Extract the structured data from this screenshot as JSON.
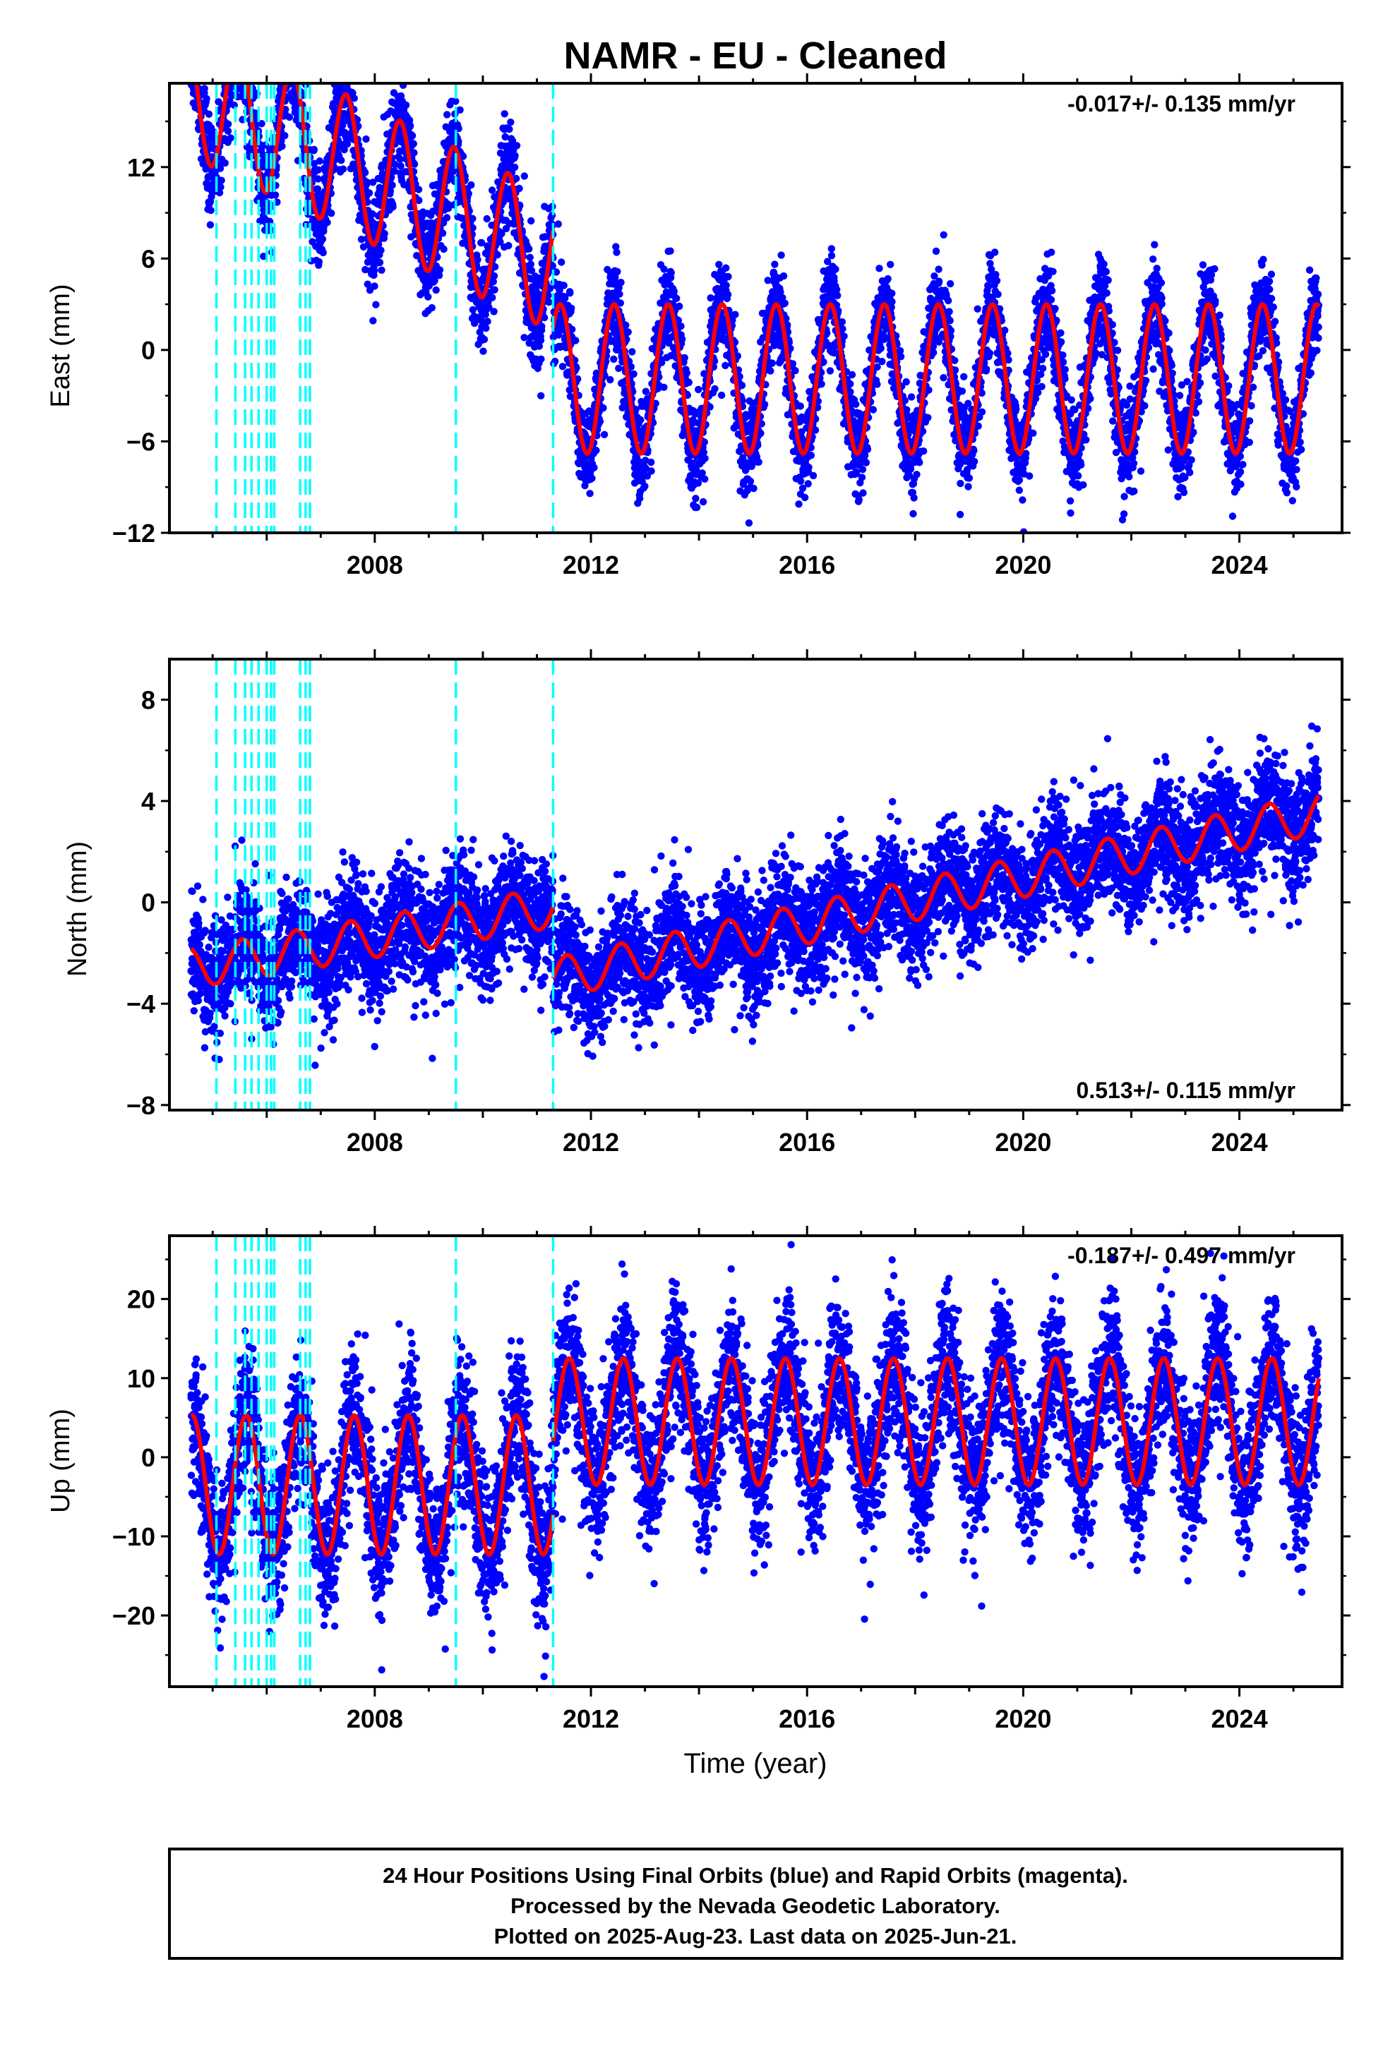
{
  "title": "NAMR  - EU - Cleaned",
  "colors": {
    "points": "#0000ff",
    "model": "#ff0000",
    "events": "#00ffff",
    "frame": "#000000"
  },
  "chart_data": [
    {
      "type": "scatter",
      "component": "east",
      "ylabel": "East (mm)",
      "rate_label": "-0.017+/- 0.135 mm/yr",
      "rate_position": "top-right",
      "xlim": [
        2004.2,
        2025.9
      ],
      "ylim": [
        -12,
        17.5
      ],
      "yticks": [
        -12,
        -6,
        0,
        6,
        12
      ],
      "ytick_labels": [
        "−12",
        "−6",
        "0",
        "6",
        "12"
      ],
      "xticks": [
        2008,
        2012,
        2016,
        2020,
        2024
      ],
      "xtick_labels": [
        "2008",
        "2012",
        "2016",
        "2020",
        "2024"
      ],
      "model_segments": [
        {
          "t0": 2004.6,
          "t1": 2011.3,
          "offset": 17.2,
          "trend": -1.72,
          "amplitude": 4.5,
          "peak_phase": 0.47,
          "noise": 1.7
        },
        {
          "t0": 2011.3,
          "t1": 2025.47,
          "offset": -1.9,
          "trend": 0.0,
          "amplitude": 4.9,
          "peak_phase": 0.43,
          "noise": 1.5
        }
      ],
      "series": [
        {
          "name": "Final Orbits",
          "kind": "points"
        },
        {
          "name": "model",
          "kind": "line"
        }
      ]
    },
    {
      "type": "scatter",
      "component": "north",
      "ylabel": "North (mm)",
      "rate_label": "0.513+/- 0.115 mm/yr",
      "rate_position": "bottom-right",
      "xlim": [
        2004.2,
        2025.9
      ],
      "ylim": [
        -8.2,
        9.6
      ],
      "yticks": [
        -8,
        -4,
        0,
        4,
        8
      ],
      "ytick_labels": [
        "−8",
        "−4",
        "0",
        "4",
        "8"
      ],
      "xticks": [
        2008,
        2012,
        2016,
        2020,
        2024
      ],
      "xtick_labels": [
        "2008",
        "2012",
        "2016",
        "2020",
        "2024"
      ],
      "model_segments": [
        {
          "t0": 2004.6,
          "t1": 2011.3,
          "offset": -2.6,
          "trend": 0.36,
          "amplitude": 0.8,
          "peak_phase": 0.55,
          "noise": 1.1
        },
        {
          "t0": 2011.3,
          "t1": 2025.47,
          "offset": -3.0,
          "trend": 0.46,
          "amplitude": 0.8,
          "peak_phase": 0.55,
          "noise": 1.1
        }
      ],
      "series": [
        {
          "name": "Final Orbits",
          "kind": "points"
        },
        {
          "name": "model",
          "kind": "line"
        }
      ]
    },
    {
      "type": "scatter",
      "component": "up",
      "ylabel": "Up (mm)",
      "xlabel": "Time (year)",
      "rate_label": "-0.187+/- 0.497 mm/yr",
      "rate_position": "top-right",
      "xlim": [
        2004.2,
        2025.9
      ],
      "ylim": [
        -29,
        28
      ],
      "yticks": [
        -20,
        -10,
        0,
        10,
        20
      ],
      "ytick_labels": [
        "−20",
        "−10",
        "0",
        "10",
        "20"
      ],
      "xticks": [
        2008,
        2012,
        2016,
        2020,
        2024
      ],
      "xtick_labels": [
        "2008",
        "2012",
        "2016",
        "2020",
        "2024"
      ],
      "model_segments": [
        {
          "t0": 2004.6,
          "t1": 2011.3,
          "offset": -3.5,
          "trend": 0.0,
          "amplitude": 8.8,
          "peak_phase": 0.62,
          "noise": 4.5
        },
        {
          "t0": 2011.3,
          "t1": 2025.47,
          "offset": 4.5,
          "trend": 0.0,
          "amplitude": 8.0,
          "peak_phase": 0.6,
          "noise": 4.5
        }
      ],
      "series": [
        {
          "name": "Final Orbits",
          "kind": "points"
        },
        {
          "name": "model",
          "kind": "line"
        }
      ]
    }
  ],
  "event_lines": [
    2005.07,
    2005.42,
    2005.6,
    2005.72,
    2005.85,
    2006.0,
    2006.08,
    2006.14,
    2006.62,
    2006.72,
    2006.8,
    2009.5,
    2011.3
  ],
  "footer": {
    "line1": "24 Hour Positions Using Final Orbits (blue) and Rapid Orbits (magenta).",
    "line2": "Processed by the Nevada Geodetic Laboratory.",
    "line3": "Plotted on 2025-Aug-23. Last data on 2025-Jun-21."
  }
}
